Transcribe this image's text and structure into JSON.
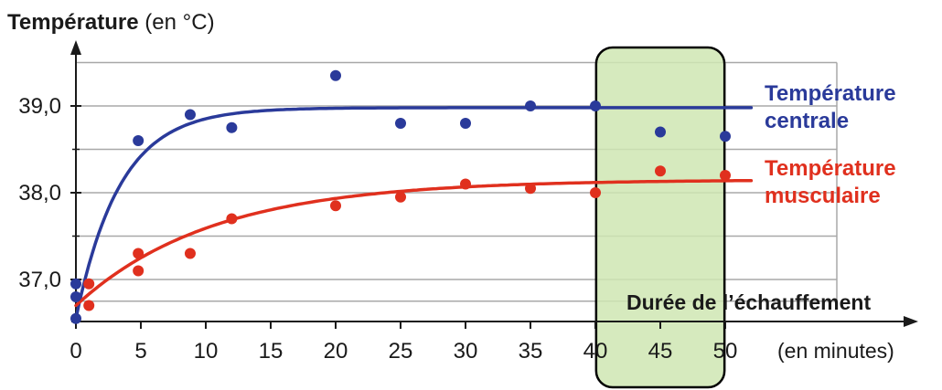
{
  "chart_data": {
    "type": "scatter",
    "title": "",
    "ylabel_bold": "Température",
    "ylabel_rest": " (en °C)",
    "xlabel": "Durée de l’échauffement",
    "xunit": "(en minutes)",
    "xlim": [
      0,
      52
    ],
    "ylim": [
      36.5,
      39.7
    ],
    "xticks": [
      0,
      5,
      10,
      15,
      20,
      25,
      30,
      35,
      40,
      45,
      50
    ],
    "yticks": [
      37.0,
      38.0,
      39.0
    ],
    "ytick_labels": [
      "37,0",
      "38,0",
      "39,0"
    ],
    "grid": "horizontal",
    "legend": "right, inline labels",
    "highlight_band": {
      "from": 40.2,
      "to": 49.8,
      "color": "#cfe6b3",
      "stroke": "#000000"
    },
    "series": [
      {
        "legend_lines": [
          "Température",
          "centrale"
        ],
        "color": "#2a3a9a",
        "x": [
          0,
          0,
          0,
          4.8,
          8.8,
          12,
          20,
          25,
          30,
          35,
          40,
          45,
          50
        ],
        "y": [
          36.95,
          36.8,
          36.55,
          38.6,
          38.9,
          38.75,
          39.35,
          38.8,
          38.8,
          39.0,
          39.0,
          38.7,
          38.65
        ],
        "fit": {
          "kind": "exp",
          "y0": 36.55,
          "ymax": 38.98,
          "tau": 3.4,
          "xmax": 52
        }
      },
      {
        "legend_lines": [
          "Température",
          "musculaire"
        ],
        "color": "#e0301e",
        "x": [
          1,
          1,
          4.8,
          4.8,
          8.8,
          12,
          20,
          25,
          30,
          35,
          40,
          45,
          50
        ],
        "y": [
          36.95,
          36.7,
          37.3,
          37.1,
          37.3,
          37.7,
          37.85,
          37.95,
          38.1,
          38.05,
          38.0,
          38.25,
          38.2
        ],
        "fit": {
          "kind": "exp",
          "y0": 36.7,
          "ymax": 38.15,
          "tau": 10.5,
          "xmax": 52
        }
      }
    ]
  }
}
